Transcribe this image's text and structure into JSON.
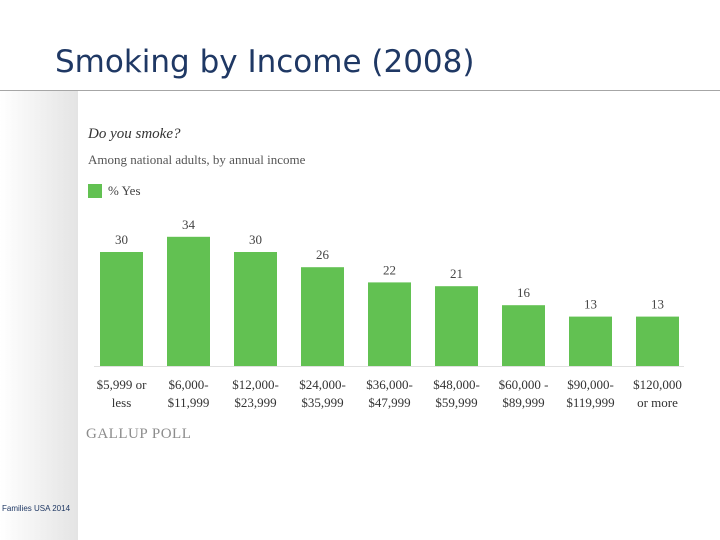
{
  "slide": {
    "title": "Smoking by Income (2008)",
    "footer_note": "Families USA 2014"
  },
  "chart_data": {
    "type": "bar",
    "title": "Do you smoke?",
    "subtitle": "Among national adults, by annual income",
    "categories": [
      "$5,999 or less",
      "$6,000- $11,999",
      "$12,000- $23,999",
      "$24,000- $35,999",
      "$36,000- $47,999",
      "$48,000- $59,999",
      "$60,000 - $89,999",
      "$90,000- $119,999",
      "$120,000 or more"
    ],
    "category_lines": [
      [
        "$5,999 or",
        "less"
      ],
      [
        "$6,000-",
        "$11,999"
      ],
      [
        "$12,000-",
        "$23,999"
      ],
      [
        "$24,000-",
        "$35,999"
      ],
      [
        "$36,000-",
        "$47,999"
      ],
      [
        "$48,000-",
        "$59,999"
      ],
      [
        "$60,000 -",
        "$89,999"
      ],
      [
        "$90,000-",
        "$119,999"
      ],
      [
        "$120,000",
        "or more"
      ]
    ],
    "series": [
      {
        "name": "% Yes",
        "values": [
          30,
          34,
          30,
          26,
          22,
          21,
          16,
          13,
          13
        ]
      }
    ],
    "ylim": [
      0,
      40
    ],
    "bar_color": "#62c152",
    "legend_position": "top-left",
    "grid": false,
    "source": "GALLUP POLL"
  }
}
